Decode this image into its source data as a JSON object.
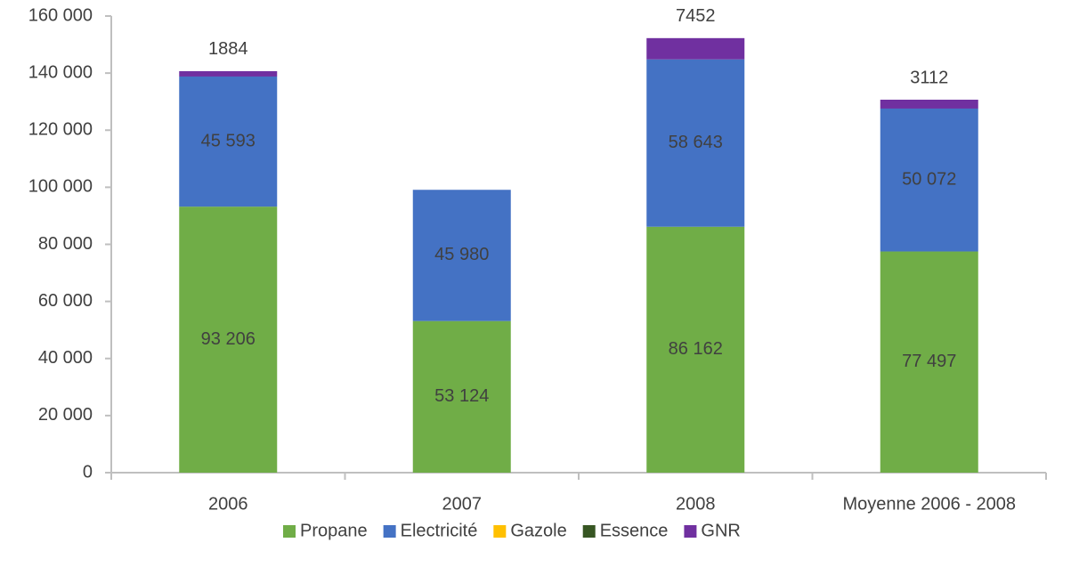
{
  "chart_data": {
    "type": "bar",
    "stacked": true,
    "categories": [
      "2006",
      "2007",
      "2008",
      "Moyenne 2006 - 2008"
    ],
    "series": [
      {
        "name": "Propane",
        "color": "#70ad47",
        "values": [
          93206,
          53124,
          86162,
          77497
        ],
        "value_labels": [
          "93 206",
          "53 124",
          "86 162",
          "77 497"
        ]
      },
      {
        "name": "Electricité",
        "color": "#4472c4",
        "values": [
          45593,
          45980,
          58643,
          50072
        ],
        "value_labels": [
          "45 593",
          "45 980",
          "58 643",
          "50 072"
        ]
      },
      {
        "name": "Gazole",
        "color": "#ffc000",
        "values": [
          0,
          0,
          0,
          0
        ]
      },
      {
        "name": "Essence",
        "color": "#375623",
        "values": [
          0,
          0,
          0,
          0
        ]
      },
      {
        "name": "GNR",
        "color": "#7030a0",
        "values": [
          1884,
          0,
          7452,
          3112
        ]
      }
    ],
    "ylim": [
      0,
      160000
    ],
    "yticks": [
      0,
      {
        "value": 20000,
        "label": "20 000"
      },
      {
        "value": 40000,
        "label": "40 000"
      },
      {
        "value": 60000,
        "label": "60 000"
      },
      {
        "value": 80000,
        "label": "80 000"
      },
      {
        "value": 100000,
        "label": "100 000"
      },
      {
        "value": 120000,
        "label": "120 000"
      },
      {
        "value": 140000,
        "label": "140 000"
      },
      {
        "value": 160000,
        "label": "160 000"
      }
    ],
    "legend": "bottom"
  }
}
